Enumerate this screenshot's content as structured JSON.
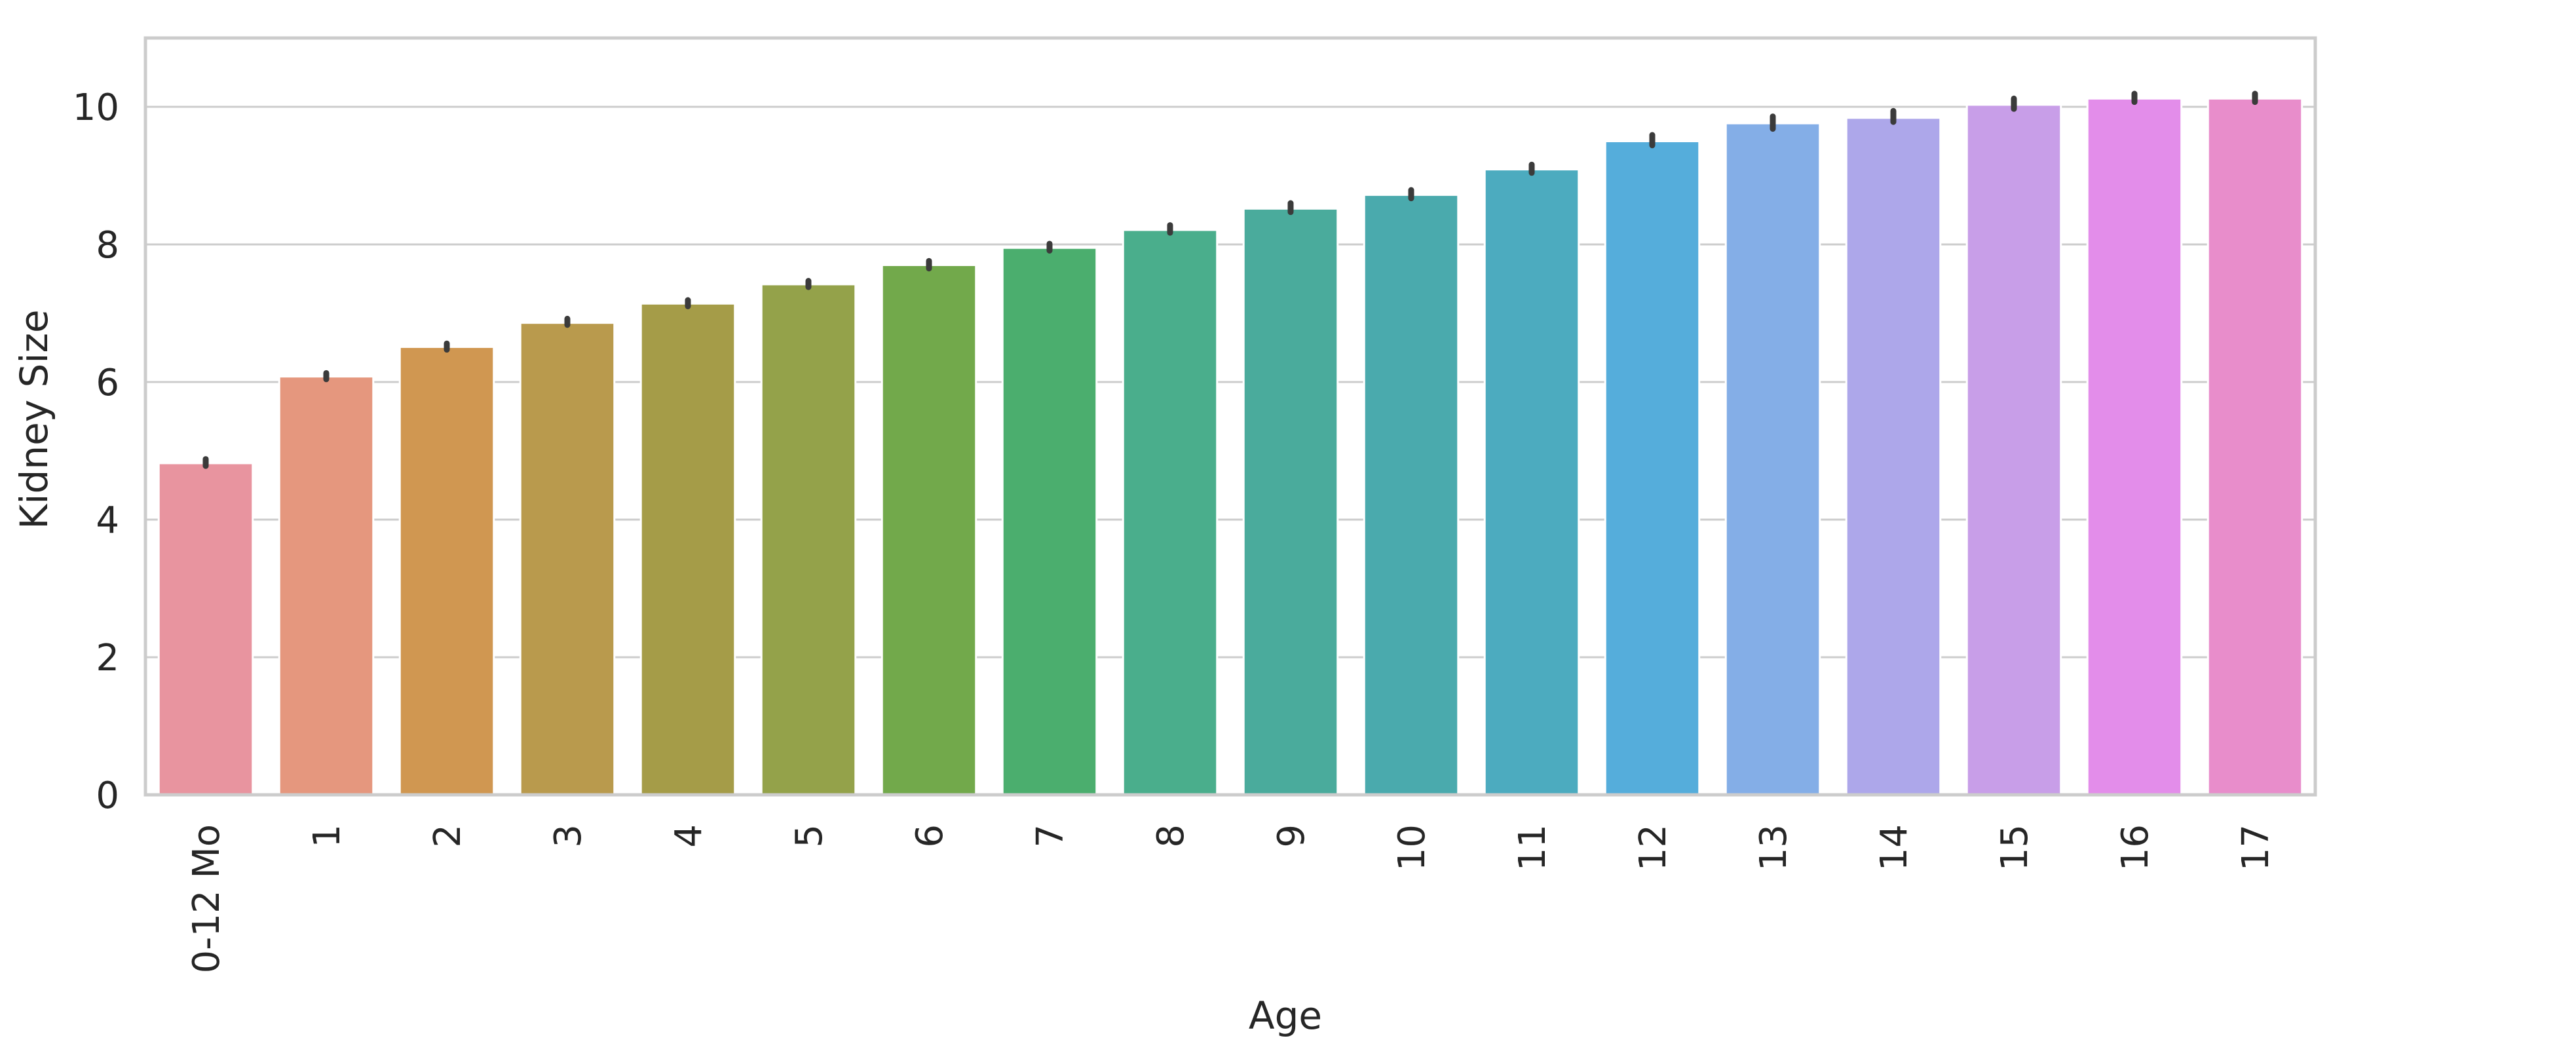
{
  "chart_data": {
    "type": "bar",
    "title": "",
    "xlabel": "Age",
    "ylabel": "Kidney Size",
    "categories": [
      "0-12 Mo",
      "1",
      "2",
      "3",
      "4",
      "5",
      "6",
      "7",
      "8",
      "9",
      "10",
      "11",
      "12",
      "13",
      "14",
      "15",
      "16",
      "17"
    ],
    "values": [
      4.82,
      6.08,
      6.51,
      6.86,
      7.14,
      7.42,
      7.7,
      7.95,
      8.21,
      8.52,
      8.72,
      9.09,
      9.5,
      9.76,
      9.84,
      10.03,
      10.12,
      10.12
    ],
    "error_bars": [
      [
        4.78,
        4.88
      ],
      [
        6.04,
        6.13
      ],
      [
        6.47,
        6.56
      ],
      [
        6.83,
        6.92
      ],
      [
        7.1,
        7.19
      ],
      [
        7.38,
        7.47
      ],
      [
        7.65,
        7.76
      ],
      [
        7.91,
        8.01
      ],
      [
        8.17,
        8.28
      ],
      [
        8.47,
        8.6
      ],
      [
        8.67,
        8.79
      ],
      [
        9.04,
        9.16
      ],
      [
        9.44,
        9.59
      ],
      [
        9.68,
        9.86
      ],
      [
        9.78,
        9.94
      ],
      [
        9.97,
        10.12
      ],
      [
        10.07,
        10.19
      ],
      [
        10.07,
        10.19
      ]
    ],
    "colors": [
      "#e8949f",
      "#e5977e",
      "#d09751",
      "#b99a4d",
      "#a59c48",
      "#94a24a",
      "#72a94b",
      "#4bae6e",
      "#4aae8c",
      "#4aab9c",
      "#4aaaad",
      "#4cabbf",
      "#55addb",
      "#84aee7",
      "#ada7ea",
      "#c89ee8",
      "#e38dea",
      "#e88dcb"
    ],
    "ylim": [
      0,
      11
    ],
    "yticks": [
      0,
      2,
      4,
      6,
      8,
      10
    ],
    "grid": "horizontal",
    "legend": "none"
  }
}
